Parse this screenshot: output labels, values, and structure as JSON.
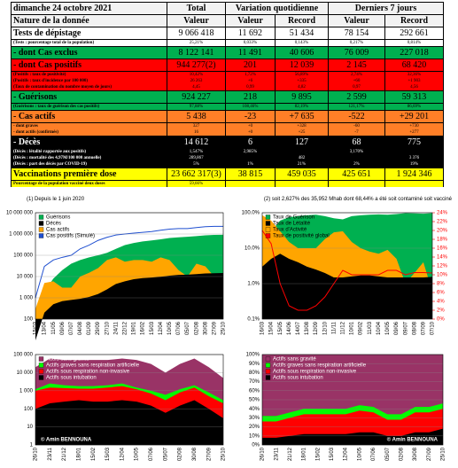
{
  "table": {
    "title": "dimanche 24 octobre 2021",
    "headers": [
      "Total",
      "Variation quotidienne",
      "Derniers 7 jours"
    ],
    "subheaders": [
      "Nature de la donnée",
      "Valeur",
      "Valeur",
      "Record",
      "Valeur",
      "Record"
    ],
    "rows": [
      {
        "color": "#ffffff",
        "cells": [
          "Tests de dépistage",
          "9 066 418",
          "11 692",
          "51 434",
          "78 154",
          "292 661"
        ],
        "notes": [
          [
            "(Tests : pourcentage total de la population)",
            "25,21%",
            "0,033%",
            "0,143%",
            "0,217%",
            "0,814%"
          ]
        ]
      },
      {
        "color": "#00b050",
        "cells": [
          "- dont Cas exclus",
          "8 122 141",
          "11 491",
          "40 606",
          "76 009",
          "227 018"
        ],
        "notes": []
      },
      {
        "color": "#ff0000",
        "cells": [
          "- dont Cas positifs",
          "944 277(2)",
          "201",
          "12 039",
          "2 145",
          "68 420"
        ],
        "notes": [
          [
            "(Positifs : taux de positivité)",
            "10,42%",
            "1,72%",
            "56,89%",
            "2,74%",
            "32,36%"
          ],
          [
            "(Positifs : taux d'incidence par 100 000)",
            "26 263",
            "+6",
            "+335",
            "+60",
            "+1 903"
          ],
          [
            "(Taux de contamination du nombre moyen de jours)",
            "4,45",
            "0,99",
            "4,82",
            "0,97",
            "4,56"
          ]
        ]
      },
      {
        "color": "#00b050",
        "cells": [
          "- Guérisons",
          "924 227",
          "218",
          "9 895",
          "2 599",
          "59 313"
        ],
        "notes": [
          [
            "(Guérisons : taux de guérison des cas positifs)",
            "97,88%",
            "108,46%",
            "82,19%",
            "121,17%",
            "86,69%"
          ]
        ]
      },
      {
        "color": "#ff7f27",
        "cells": [
          "- Cas actifs",
          "5 438",
          "-23",
          "+7 635",
          "-522",
          "+29 201"
        ],
        "notes": [
          [
            "- dont graves",
            "327",
            "+0",
            "+328",
            "-60",
            "+730"
          ],
          [
            "- dont actifs (confirmés)",
            "16",
            "+0",
            "+25",
            "-7",
            "+277"
          ]
        ]
      },
      {
        "color": "#000000",
        "cells": [
          "- Décès",
          "14 612",
          "6",
          "127",
          "68",
          "775"
        ],
        "notes": [
          [
            "(Décès : létalité rapportée aux positifs)",
            "1,547%",
            "2,985%",
            null,
            "3,170%",
            null
          ],
          [
            "(Décès : mortalité des 4,97M/100 000 annuelle)",
            "289,867",
            null,
            "482",
            null,
            "3 376"
          ],
          [
            "(Décès : part des décès par COVID-19)",
            "5%",
            "1%",
            "21%",
            "2%",
            "19%"
          ]
        ]
      },
      {
        "color": "#ffff00",
        "cells": [
          "Vaccinations première dose",
          "23 662 317(3)",
          "38 815",
          "459 035",
          "425 651",
          "1 924 346"
        ],
        "notes": [
          [
            "Pourcentage de la population vacciné deux doses",
            "59,66%",
            null,
            null,
            null,
            null
          ]
        ]
      }
    ],
    "footnotes": [
      "(1) Depuis le 1 juin 2020",
      "(2) soit 2,627% des 35,952 Mhab dont 68,44% a été soit contaminé soit vacciné"
    ]
  },
  "chart_data": [
    {
      "type": "area",
      "log": true,
      "grid": true,
      "legend": "upper left",
      "categories": [
        "15/03",
        "13/04",
        "11/05",
        "09/06",
        "07/07",
        "04/08",
        "01/09",
        "29/09",
        "27/10",
        "24/11",
        "22/12",
        "19/01",
        "16/02",
        "15/03",
        "12/04",
        "10/05",
        "07/06",
        "05/07",
        "02/08",
        "30/08",
        "27/09",
        "25/10"
      ],
      "ylim": [
        100,
        10000000
      ],
      "yticks": [
        100,
        {
          "value": 1000,
          "label": "1 000"
        },
        {
          "value": 10000,
          "label": "10 000"
        },
        {
          "value": 100000,
          "label": "100 000"
        },
        {
          "value": 1000000,
          "label": "1 000 000"
        },
        {
          "value": 10000000,
          "label": "10 000 000"
        }
      ],
      "series": [
        {
          "name": "Guérisons",
          "color": "#00b050",
          "values": [
            150,
            2000,
            8000,
            20000,
            40000,
            60000,
            80000,
            100000,
            130000,
            200000,
            300000,
            380000,
            450000,
            500000,
            560000,
            650000,
            700000,
            740000,
            800000,
            870000,
            910000,
            924000
          ]
        },
        {
          "name": "Décès",
          "color": "#000000",
          "values": [
            10,
            200,
            500,
            700,
            800,
            900,
            1100,
            1500,
            2500,
            4500,
            6000,
            7500,
            8500,
            9000,
            9800,
            11000,
            12000,
            12300,
            13000,
            14000,
            14400,
            14600
          ]
        },
        {
          "name": "Cas actifs",
          "color": "#ffa500",
          "values": [
            300,
            5000,
            6000,
            3000,
            3000,
            10000,
            15000,
            25000,
            60000,
            80000,
            50000,
            60000,
            60000,
            50000,
            80000,
            60000,
            20000,
            10000,
            40000,
            30000,
            10000,
            5438
          ]
        },
        {
          "name": "Cas positifs (Simulé)",
          "color": "#1f4fd0",
          "mark": "line",
          "values": [
            1000,
            30000,
            60000,
            80000,
            100000,
            200000,
            300000,
            500000,
            700000,
            900000,
            1000000,
            1100000,
            1200000,
            1300000,
            1500000,
            1700000,
            1800000,
            1800000,
            2000000,
            2200000,
            2300000,
            2300000
          ]
        }
      ]
    },
    {
      "type": "area",
      "log": true,
      "grid": true,
      "legend": "upper left",
      "categories": [
        "16/03",
        "15/04",
        "15/05",
        "14/06",
        "14/07",
        "13/08",
        "12/09",
        "12/10",
        "11/11",
        "11/12",
        "10/01",
        "09/02",
        "11/03",
        "10/04",
        "10/05",
        "09/06",
        "09/07",
        "08/08",
        "07/09",
        "07/10"
      ],
      "ylim": [
        0.1,
        100
      ],
      "yticks": [
        {
          "value": 0.1,
          "label": "0.1%"
        },
        {
          "value": 1,
          "label": "1.0%"
        },
        {
          "value": 10,
          "label": "10.0%"
        },
        {
          "value": 100,
          "label": "100.0%"
        }
      ],
      "y2lim": [
        0,
        24
      ],
      "y2ticks": [
        {
          "value": 0,
          "label": "0%"
        },
        {
          "value": 2,
          "label": "2%"
        },
        {
          "value": 4,
          "label": "4%"
        },
        {
          "value": 6,
          "label": "6%"
        },
        {
          "value": 8,
          "label": "8%"
        },
        {
          "value": 10,
          "label": "10%"
        },
        {
          "value": 12,
          "label": "12%"
        },
        {
          "value": 14,
          "label": "14%"
        },
        {
          "value": 16,
          "label": "16%"
        },
        {
          "value": 18,
          "label": "18%"
        },
        {
          "value": 20,
          "label": "20%"
        },
        {
          "value": 22,
          "label": "22%"
        },
        {
          "value": 24,
          "label": "24%"
        }
      ],
      "series": [
        {
          "name": "Taux de Guérison",
          "color": "#00b050",
          "values": [
            10,
            30,
            60,
            75,
            80,
            85,
            88,
            80,
            70,
            65,
            80,
            85,
            88,
            90,
            88,
            92,
            97,
            96,
            94,
            97
          ]
        },
        {
          "name": "Taux de Létalité",
          "color": "#000000",
          "values": [
            3,
            5,
            7,
            5,
            4,
            3,
            2.5,
            2,
            1.5,
            1.5,
            1.6,
            1.7,
            1.7,
            1.6,
            1.5,
            1.5,
            1.5,
            1.5,
            1.5,
            1.55
          ]
        },
        {
          "name": "Taux d'Activité",
          "color": "#ffa500",
          "values": [
            85,
            60,
            30,
            15,
            10,
            10,
            10,
            18,
            28,
            30,
            15,
            10,
            8,
            7,
            9,
            5,
            1,
            2,
            4,
            0.6
          ]
        },
        {
          "name": "Taux de positivité global",
          "color": "#ff0000",
          "mark": "line",
          "axis": "y2",
          "values": [
            20,
            17,
            8,
            3,
            2,
            2,
            3,
            5,
            8,
            11,
            10,
            10,
            10,
            10,
            11,
            11,
            10,
            10.5,
            10.5,
            10.4
          ]
        }
      ]
    },
    {
      "type": "area",
      "log": true,
      "grid": true,
      "legend": "upper left",
      "note": "© Amin BENNOUNA",
      "categories": [
        "26/10",
        "23/11",
        "21/12",
        "18/01",
        "15/02",
        "15/03",
        "12/04",
        "10/05",
        "07/06",
        "05/07",
        "02/08",
        "30/08",
        "27/09",
        "25/10"
      ],
      "ylim": [
        1,
        100000
      ],
      "yticks": [
        1,
        10,
        100,
        {
          "value": 1000,
          "label": "1 000"
        },
        {
          "value": 10000,
          "label": "10 000"
        },
        {
          "value": 100000,
          "label": "100 000"
        }
      ],
      "series": [
        {
          "name": "Actifs sans gravité",
          "color": "#993366",
          "values": [
            20000,
            60000,
            50000,
            50000,
            50000,
            50000,
            60000,
            50000,
            30000,
            10000,
            30000,
            60000,
            20000,
            5000
          ]
        },
        {
          "name": "Actifs graves sans respiration artificielle",
          "color": "#00ff00",
          "values": [
            1200,
            2500,
            2000,
            1800,
            1800,
            2000,
            2500,
            1500,
            1000,
            600,
            1200,
            2000,
            800,
            300
          ]
        },
        {
          "name": "Actifs sous respiration non-invasive",
          "color": "#ff0000",
          "values": [
            1000,
            1500,
            1400,
            1300,
            1300,
            1500,
            1800,
            1200,
            700,
            300,
            800,
            1500,
            500,
            200
          ]
        },
        {
          "name": "Actifs sous intubation",
          "color": "#000000",
          "values": [
            100,
            200,
            250,
            300,
            250,
            250,
            300,
            250,
            150,
            60,
            150,
            300,
            100,
            30
          ]
        }
      ]
    },
    {
      "type": "stackedarea",
      "log": false,
      "grid": true,
      "legend": "upper left",
      "note": "© Amin BENNOUNA",
      "categories": [
        "26/10",
        "23/11",
        "21/12",
        "18/01",
        "15/02",
        "15/03",
        "12/04",
        "10/05",
        "07/06",
        "05/07",
        "02/08",
        "30/08",
        "27/09",
        "25/10"
      ],
      "ylim": [
        0,
        100
      ],
      "yticks": [
        {
          "value": 0,
          "label": "0%"
        },
        {
          "value": 10,
          "label": "10%"
        },
        {
          "value": 20,
          "label": "20%"
        },
        {
          "value": 30,
          "label": "30%"
        },
        {
          "value": 40,
          "label": "40%"
        },
        {
          "value": 50,
          "label": "50%"
        },
        {
          "value": 60,
          "label": "60%"
        },
        {
          "value": 70,
          "label": "70%"
        },
        {
          "value": 80,
          "label": "80%"
        },
        {
          "value": 90,
          "label": "90%"
        },
        {
          "value": 100,
          "label": "100%"
        }
      ],
      "series": [
        {
          "name": "Actifs sans gravité",
          "color": "#993366",
          "values": [
            68,
            68,
            64,
            60,
            60,
            60,
            60,
            56,
            58,
            66,
            66,
            58,
            58,
            54
          ]
        },
        {
          "name": "Actifs graves sans respiration artificielle",
          "color": "#00ff00",
          "values": [
            6,
            6,
            6,
            6,
            6,
            6,
            6,
            6,
            6,
            6,
            6,
            6,
            6,
            6
          ]
        },
        {
          "name": "Actifs sous respiration non-invasive",
          "color": "#ff0000",
          "values": [
            18,
            18,
            20,
            22,
            22,
            22,
            22,
            24,
            22,
            18,
            18,
            22,
            22,
            22
          ]
        },
        {
          "name": "Actifs sous intubation",
          "color": "#000000",
          "values": [
            8,
            8,
            10,
            12,
            12,
            12,
            12,
            14,
            14,
            10,
            10,
            14,
            14,
            18
          ]
        }
      ]
    }
  ]
}
